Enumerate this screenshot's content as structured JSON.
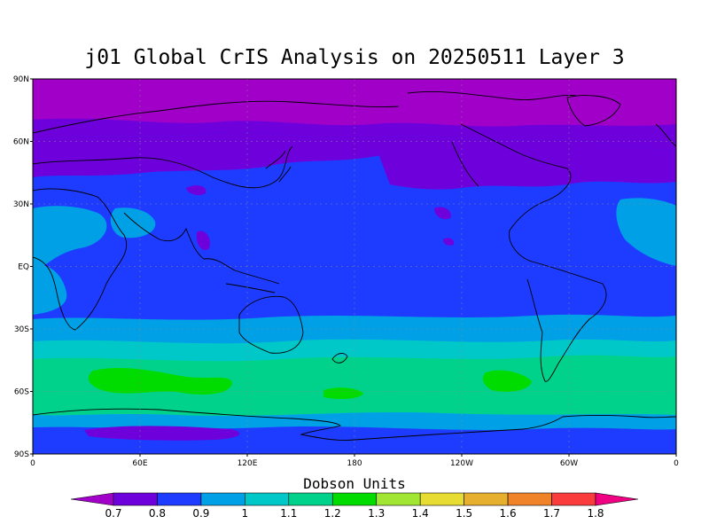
{
  "title": "j01 Global CrIS Analysis on 20250511 Layer 3",
  "colorbar": {
    "label": "Dobson Units",
    "ticks": [
      "0.7",
      "0.8",
      "0.9",
      "1",
      "1.1",
      "1.2",
      "1.3",
      "1.4",
      "1.5",
      "1.6",
      "1.7",
      "1.8"
    ],
    "colors": [
      "#a000c8",
      "#6e00dc",
      "#1e3cff",
      "#00a0e6",
      "#00c8c8",
      "#00d28c",
      "#00dc00",
      "#a0e632",
      "#e6dc32",
      "#e6af2d",
      "#f08228",
      "#fa3c3c",
      "#f00082"
    ]
  },
  "axes": {
    "lat_labels": [
      "90N",
      "60N",
      "30N",
      "EQ",
      "30S",
      "60S",
      "90S"
    ],
    "lon_labels": [
      "0",
      "60E",
      "120E",
      "180",
      "120W",
      "60W",
      "0"
    ]
  },
  "chart_data": {
    "type": "heatmap",
    "title": "j01 Global CrIS Analysis on 20250511 Layer 3",
    "units": "Dobson Units",
    "lat_range": [
      -90,
      90
    ],
    "lon_range": [
      0,
      360
    ],
    "zonal_bands": [
      {
        "lat_from": 90,
        "lat_to": 63,
        "value": 0.7
      },
      {
        "lat_from": 63,
        "lat_to": 45,
        "value": 0.8
      },
      {
        "lat_from": 45,
        "lat_to": 33,
        "value": 0.9
      },
      {
        "lat_from": 33,
        "lat_to": -22,
        "value": 0.8
      },
      {
        "lat_from": -22,
        "lat_to": -35,
        "value": 0.9
      },
      {
        "lat_from": -35,
        "lat_to": -45,
        "value": 1.0
      },
      {
        "lat_from": -45,
        "lat_to": -52,
        "value": 1.1
      },
      {
        "lat_from": -52,
        "lat_to": -62,
        "value": 1.2
      },
      {
        "lat_from": -62,
        "lat_to": -68,
        "value": 1.1
      },
      {
        "lat_from": -68,
        "lat_to": -75,
        "value": 1.0
      },
      {
        "lat_from": -75,
        "lat_to": -90,
        "value": 0.8
      }
    ]
  }
}
